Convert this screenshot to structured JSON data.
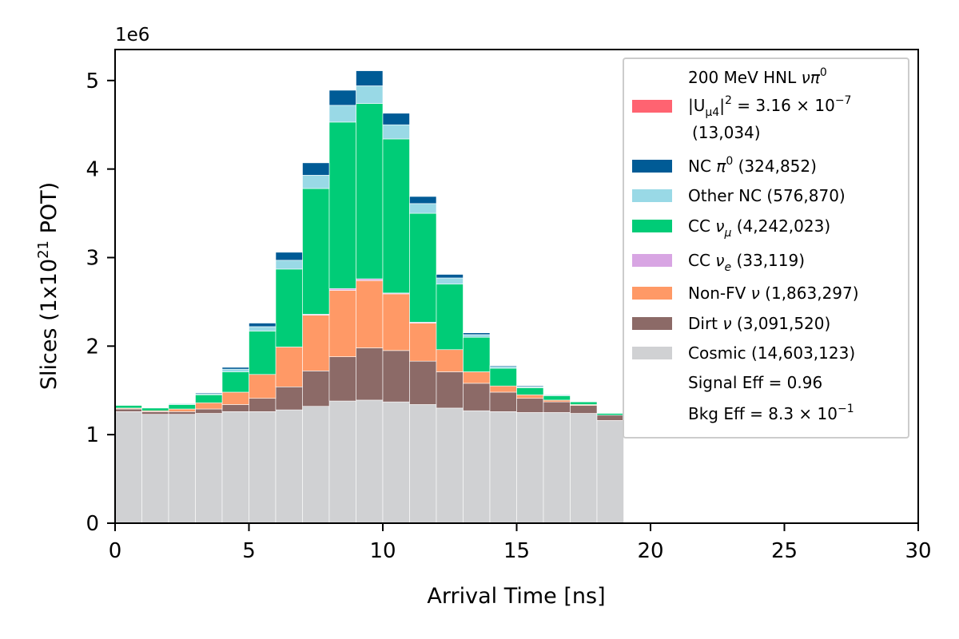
{
  "chart_data": {
    "type": "bar",
    "stacked": true,
    "xlabel": "Arrival Time [ns]",
    "ylabel": "Slices (1x10^21 POT)",
    "y_multiplier": "1e6",
    "xlim": [
      0,
      30
    ],
    "ylim": [
      0,
      5.35
    ],
    "x_ticks": [
      "0",
      "5",
      "10",
      "15",
      "20",
      "25",
      "30"
    ],
    "y_ticks": [
      "0",
      "1",
      "2",
      "3",
      "4",
      "5"
    ],
    "grid": false,
    "legend_placement": "top-right",
    "bin_edges": [
      0,
      1,
      2,
      3,
      4,
      5,
      6,
      7,
      8,
      9,
      10,
      11,
      12,
      13,
      14,
      15,
      16,
      17,
      18,
      19
    ],
    "series": [
      {
        "name": "Cosmic (14,603,123)",
        "color": "#d0d1d3",
        "values": [
          1.26,
          1.23,
          1.23,
          1.24,
          1.26,
          1.26,
          1.28,
          1.32,
          1.38,
          1.39,
          1.37,
          1.34,
          1.3,
          1.27,
          1.26,
          1.25,
          1.25,
          1.24,
          1.16
        ]
      },
      {
        "name": "Dirt ν (3,091,520)",
        "color": "#8c6a67",
        "values": [
          0.03,
          0.03,
          0.03,
          0.05,
          0.08,
          0.15,
          0.26,
          0.4,
          0.5,
          0.59,
          0.58,
          0.49,
          0.41,
          0.31,
          0.22,
          0.16,
          0.12,
          0.09,
          0.06
        ]
      },
      {
        "name": "Non-FV ν (1,863,297)",
        "color": "#ff9966",
        "values": [
          0.01,
          0.01,
          0.03,
          0.07,
          0.14,
          0.27,
          0.45,
          0.63,
          0.75,
          0.76,
          0.64,
          0.43,
          0.25,
          0.13,
          0.07,
          0.04,
          0.02,
          0.01,
          0.0
        ]
      },
      {
        "name": "CC νe (33,119)",
        "color": "#d8a5e3",
        "values": [
          0.0,
          0.0,
          0.0,
          0.0,
          0.0,
          0.0,
          0.0,
          0.01,
          0.02,
          0.02,
          0.01,
          0.01,
          0.0,
          0.0,
          0.0,
          0.0,
          0.0,
          0.0,
          0.0
        ]
      },
      {
        "name": "CC νμ (4,242,023)",
        "color": "#00cc77",
        "values": [
          0.03,
          0.03,
          0.05,
          0.09,
          0.23,
          0.49,
          0.88,
          1.42,
          1.88,
          1.98,
          1.74,
          1.23,
          0.74,
          0.39,
          0.2,
          0.08,
          0.05,
          0.03,
          0.02
        ]
      },
      {
        "name": "Other NC (576,870)",
        "color": "#99d9e6",
        "values": [
          0.0,
          0.0,
          0.01,
          0.01,
          0.03,
          0.05,
          0.1,
          0.15,
          0.19,
          0.2,
          0.16,
          0.11,
          0.07,
          0.03,
          0.02,
          0.01,
          0.01,
          0.0,
          0.0
        ]
      },
      {
        "name": "NC π0 (324,852)",
        "color": "#005b96",
        "values": [
          0.0,
          0.0,
          0.0,
          0.01,
          0.02,
          0.04,
          0.09,
          0.14,
          0.17,
          0.17,
          0.13,
          0.08,
          0.04,
          0.02,
          0.01,
          0.01,
          0.0,
          0.0,
          0.0
        ]
      },
      {
        "name": "200 MeV HNL νπ0 |Uμ4|2 = 3.16×10-7 (13,034)",
        "color": "#ff6371",
        "values": [
          0,
          0,
          0,
          0,
          0,
          0,
          0,
          0,
          0,
          0,
          0,
          0,
          0,
          0,
          0,
          0,
          0,
          0,
          0
        ]
      }
    ],
    "legend_extra": [
      "Signal Eff = 0.96",
      "Bkg Eff = 8.3×10-1"
    ]
  }
}
